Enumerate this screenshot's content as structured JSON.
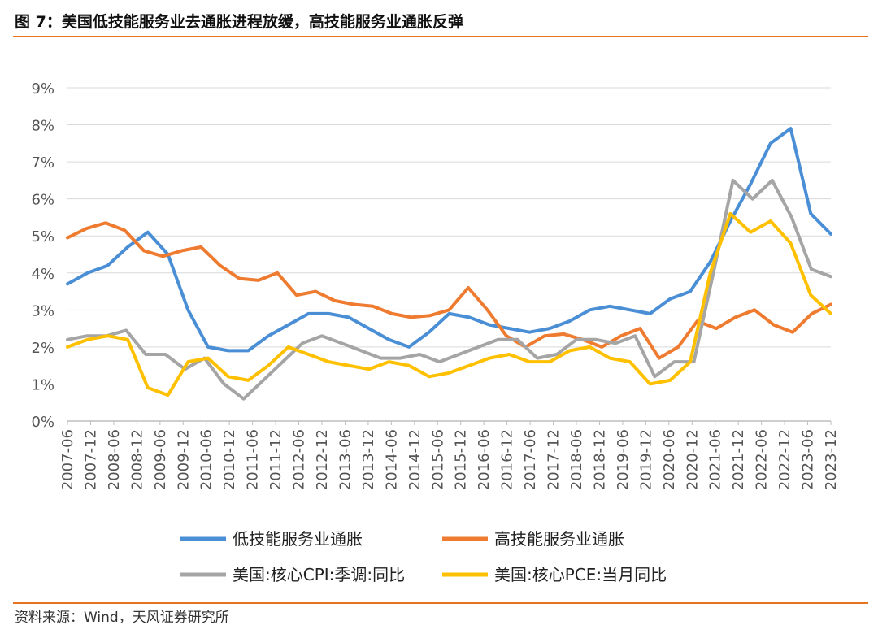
{
  "figure": {
    "title": "图 7：美国低技能服务业去通胀进程放缓，高技能服务业通胀反弹",
    "source": "资料来源：Wind，天风证券研究所"
  },
  "chart_data": {
    "type": "line",
    "title": "",
    "xlabel": "",
    "ylabel": "",
    "ylim": [
      0,
      9
    ],
    "yticks": [
      "0%",
      "1%",
      "2%",
      "3%",
      "4%",
      "5%",
      "6%",
      "7%",
      "8%",
      "9%"
    ],
    "xticks": [
      "2007-06",
      "2007-12",
      "2008-06",
      "2008-12",
      "2009-06",
      "2009-12",
      "2010-06",
      "2010-12",
      "2011-06",
      "2011-12",
      "2012-06",
      "2012-12",
      "2013-06",
      "2013-12",
      "2014-06",
      "2014-12",
      "2015-06",
      "2015-12",
      "2016-06",
      "2016-12",
      "2017-06",
      "2017-12",
      "2018-06",
      "2018-12",
      "2019-06",
      "2019-12",
      "2020-06",
      "2020-12",
      "2021-06",
      "2021-12",
      "2022-06",
      "2022-12",
      "2023-06",
      "2023-12"
    ],
    "grid": true,
    "legend": "bottom",
    "series": [
      {
        "name": "低技能服务业通胀",
        "color": "#4a8fd6",
        "values": [
          3.7,
          4.0,
          4.2,
          4.7,
          5.1,
          4.5,
          3.0,
          2.0,
          1.9,
          1.9,
          2.3,
          2.6,
          2.9,
          2.9,
          2.8,
          2.5,
          2.2,
          2.0,
          2.4,
          2.9,
          2.8,
          2.6,
          2.5,
          2.4,
          2.5,
          2.7,
          3.0,
          3.1,
          3.0,
          2.9,
          3.3,
          3.5,
          4.3,
          5.4,
          6.4,
          7.5,
          7.9,
          5.6,
          5.05
        ]
      },
      {
        "name": "高技能服务业通胀",
        "color": "#ee7b30",
        "values": [
          4.95,
          5.2,
          5.35,
          5.15,
          4.6,
          4.45,
          4.6,
          4.7,
          4.2,
          3.85,
          3.8,
          4.0,
          3.4,
          3.5,
          3.25,
          3.15,
          3.1,
          2.9,
          2.8,
          2.85,
          3.0,
          3.6,
          3.0,
          2.3,
          2.0,
          2.3,
          2.35,
          2.2,
          2.0,
          2.3,
          2.5,
          1.7,
          2.0,
          2.7,
          2.5,
          2.8,
          3.0,
          2.6,
          2.4,
          2.9,
          3.15
        ]
      },
      {
        "name": "美国:核心CPI:季调:同比",
        "color": "#a5a5a5",
        "values": [
          2.2,
          2.3,
          2.3,
          2.45,
          1.8,
          1.8,
          1.4,
          1.7,
          1.0,
          0.6,
          1.1,
          1.6,
          2.1,
          2.3,
          2.1,
          1.9,
          1.7,
          1.7,
          1.8,
          1.6,
          1.8,
          2.0,
          2.2,
          2.2,
          1.7,
          1.8,
          2.2,
          2.2,
          2.1,
          2.3,
          1.2,
          1.6,
          1.6,
          4.0,
          6.5,
          6.0,
          6.5,
          5.5,
          4.1,
          3.9
        ]
      },
      {
        "name": "美国:核心PCE:当月同比",
        "color": "#ffc000",
        "values": [
          2.0,
          2.2,
          2.3,
          2.2,
          0.9,
          0.7,
          1.6,
          1.7,
          1.2,
          1.1,
          1.5,
          2.0,
          1.8,
          1.6,
          1.5,
          1.4,
          1.6,
          1.5,
          1.2,
          1.3,
          1.5,
          1.7,
          1.8,
          1.6,
          1.6,
          1.9,
          2.0,
          1.7,
          1.6,
          1.0,
          1.1,
          1.6,
          4.0,
          5.6,
          5.1,
          5.4,
          4.8,
          3.4,
          2.9
        ]
      }
    ]
  },
  "legend_labels": {
    "s1": "低技能服务业通胀",
    "s2": "高技能服务业通胀",
    "s3": "美国:核心CPI:季调:同比",
    "s4": "美国:核心PCE:当月同比"
  }
}
